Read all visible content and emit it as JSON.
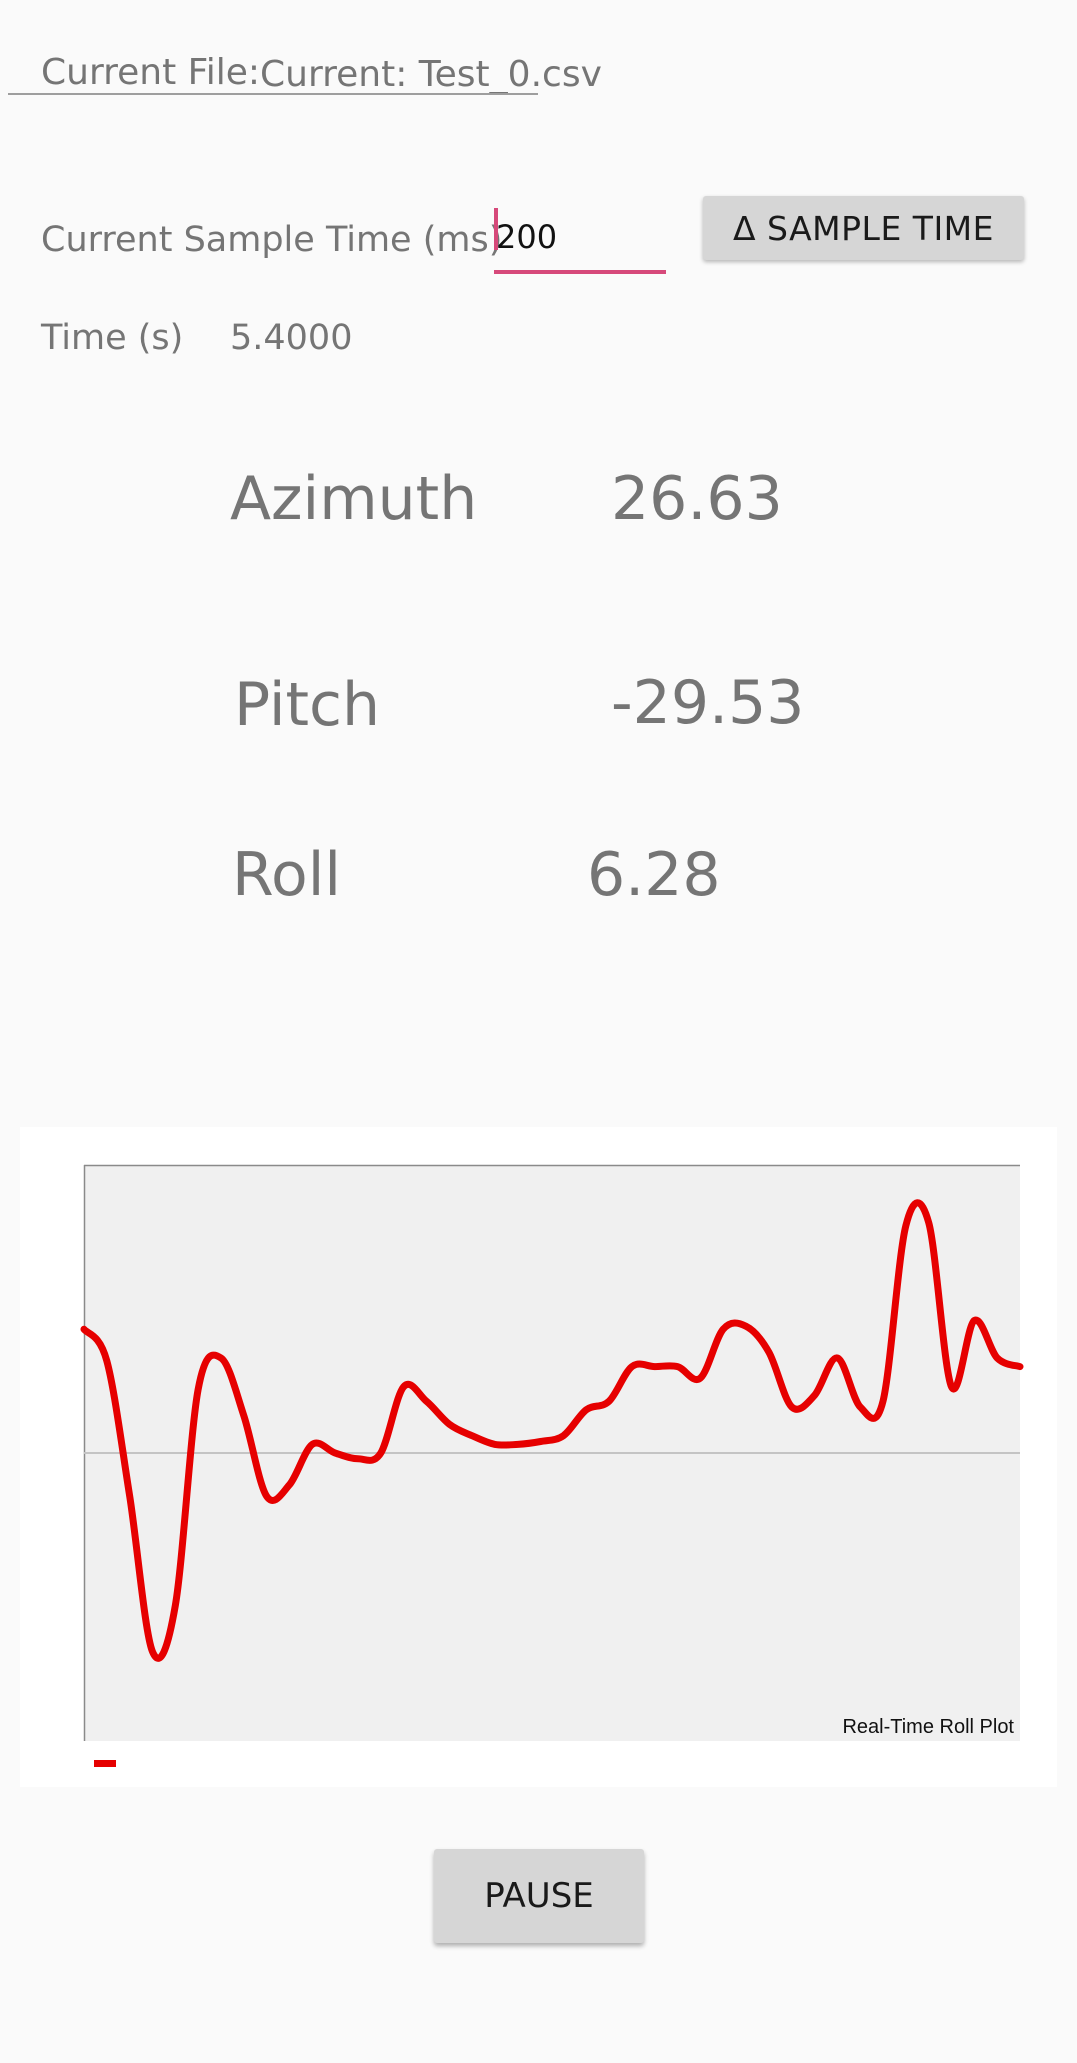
{
  "file": {
    "label": "Current File:",
    "value": "Current: Test_0.csv"
  },
  "sample_time": {
    "label": "Current Sample Time (ms)",
    "input_value": "200",
    "button_label": "Δ SAMPLE TIME"
  },
  "time": {
    "label": "Time (s)",
    "value": "5.4000"
  },
  "readouts": {
    "azimuth_label": "Azimuth",
    "azimuth_value": "26.63",
    "pitch_label": "Pitch",
    "pitch_value": "-29.53",
    "roll_label": "Roll",
    "roll_value": "6.28"
  },
  "pause_button": {
    "label": "PAUSE"
  },
  "colors": {
    "accent": "#d6497a",
    "series": "#e60000",
    "plot_bg": "#f0f0f0"
  },
  "chart_data": {
    "type": "line",
    "title": "Real-Time Roll Plot",
    "xlabel": "",
    "ylabel": "",
    "ylim": [
      -10,
      10
    ],
    "grid": false,
    "zero_line": true,
    "legend": "bottom-left",
    "series": [
      {
        "values": [
          4.3,
          3.2,
          -1.5,
          -6.9,
          -5.3,
          2.2,
          3.3,
          1.3,
          -1.5,
          -1.1,
          0.3,
          0.0,
          -0.2,
          0.0,
          2.3,
          1.8,
          1.0,
          0.6,
          0.3,
          0.3,
          0.4,
          0.6,
          1.5,
          1.8,
          3.0,
          3.0,
          3.0,
          2.6,
          4.3,
          4.4,
          3.5,
          1.6,
          2.0,
          3.3,
          1.6,
          1.8,
          7.9,
          8.0,
          2.3,
          4.6,
          3.3,
          3.0
        ]
      }
    ]
  }
}
